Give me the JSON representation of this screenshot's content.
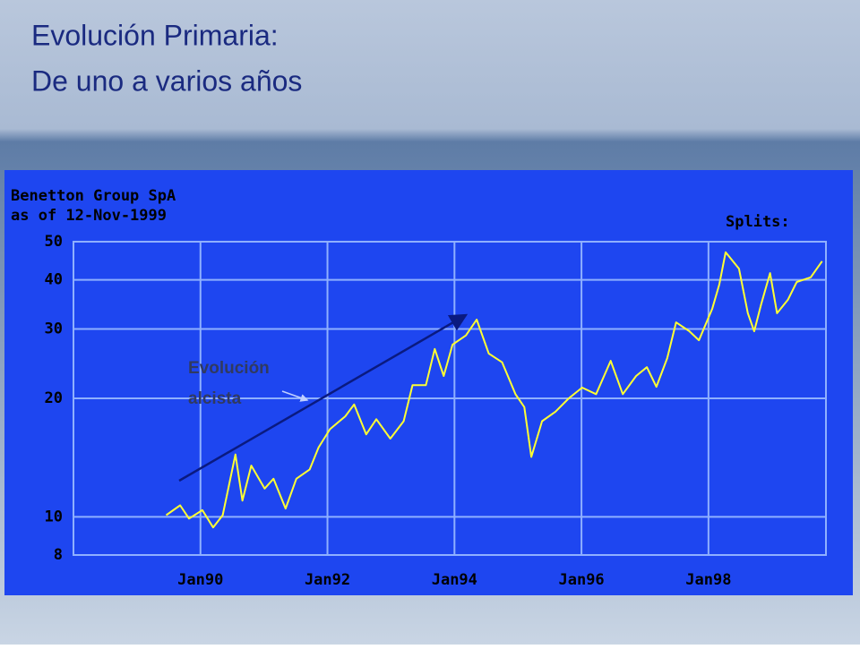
{
  "slide_title": [
    "Evolución Primaria:",
    "De uno a varios años"
  ],
  "chart_data": {
    "type": "line",
    "title": [
      "Benetton Group SpA",
      "as of 12-Nov-1999"
    ],
    "splits_label": "Splits:",
    "annotation": [
      "Evolución",
      "alcista"
    ],
    "log_scale": true,
    "grid": true,
    "color": "#ffff33",
    "xlim": [
      1988,
      1999.85
    ],
    "xticks": [
      {
        "value": 1990,
        "label": "Jan90"
      },
      {
        "value": 1992,
        "label": "Jan92"
      },
      {
        "value": 1994,
        "label": "Jan94"
      },
      {
        "value": 1996,
        "label": "Jan96"
      },
      {
        "value": 1998,
        "label": "Jan98"
      }
    ],
    "ylim": [
      8,
      50
    ],
    "yticks": [
      8,
      10,
      20,
      30,
      40,
      50
    ],
    "x": [
      1989.46,
      1989.68,
      1989.82,
      1990.03,
      1990.2,
      1990.35,
      1990.55,
      1990.66,
      1990.8,
      1991.01,
      1991.15,
      1991.34,
      1991.51,
      1991.72,
      1991.86,
      1992.04,
      1992.28,
      1992.42,
      1992.61,
      1992.77,
      1992.99,
      1993.2,
      1993.34,
      1993.55,
      1993.69,
      1993.83,
      1993.97,
      1994.18,
      1994.35,
      1994.54,
      1994.75,
      1994.96,
      1995.1,
      1995.21,
      1995.38,
      1995.59,
      1995.8,
      1996.01,
      1996.23,
      1996.46,
      1996.65,
      1996.86,
      1997.03,
      1997.18,
      1997.35,
      1997.49,
      1997.7,
      1997.85,
      1998.06,
      1998.17,
      1998.27,
      1998.48,
      1998.62,
      1998.72,
      1998.83,
      1998.97,
      1999.08,
      1999.25,
      1999.39,
      1999.61,
      1999.79
    ],
    "values": [
      10.1,
      10.7,
      9.9,
      10.4,
      9.4,
      10.1,
      14.4,
      11.0,
      13.5,
      11.8,
      12.5,
      10.5,
      12.5,
      13.2,
      15.0,
      16.7,
      18.0,
      19.3,
      16.2,
      17.7,
      15.8,
      17.5,
      21.6,
      21.6,
      26.7,
      22.8,
      27.4,
      28.9,
      31.7,
      26.0,
      24.7,
      20.5,
      19.0,
      14.2,
      17.5,
      18.5,
      20.0,
      21.3,
      20.5,
      24.9,
      20.5,
      22.8,
      24.0,
      21.4,
      25.3,
      31.2,
      29.6,
      28.1,
      33.8,
      38.9,
      47.0,
      42.7,
      32.9,
      29.6,
      34.7,
      41.6,
      32.9,
      35.6,
      39.5,
      40.6,
      44.6
    ]
  }
}
